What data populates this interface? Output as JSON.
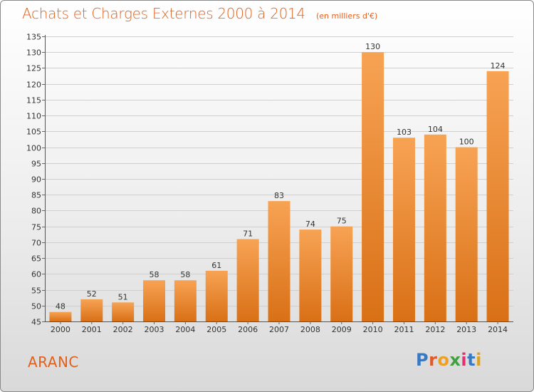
{
  "header": {
    "title": "Achats et Charges Externes 2000 à 2014",
    "subtitle": "(en milliers d'€)"
  },
  "footer": {
    "commune": "ARANC",
    "logo_text": "Proxiti",
    "logo_colors": [
      "#3a78c2",
      "#e05a28",
      "#f0a020",
      "#40a040",
      "#e03070",
      "#3a78c2",
      "#e0a020"
    ]
  },
  "colors": {
    "title": "#e0601c",
    "bar_light": "#f7a354",
    "bar_dark": "#d97016"
  },
  "chart_data": {
    "type": "bar",
    "title": "Achats et Charges Externes 2000 à 2014",
    "categories": [
      "2000",
      "2001",
      "2002",
      "2003",
      "2004",
      "2005",
      "2006",
      "2007",
      "2008",
      "2009",
      "2010",
      "2011",
      "2012",
      "2013",
      "2014"
    ],
    "values": [
      48,
      52,
      51,
      58,
      58,
      61,
      71,
      83,
      74,
      75,
      130,
      103,
      104,
      100,
      124
    ],
    "ylim": [
      45,
      135
    ],
    "yticks": [
      45,
      50,
      55,
      60,
      65,
      70,
      75,
      80,
      85,
      90,
      95,
      100,
      105,
      110,
      115,
      120,
      125,
      130,
      135
    ],
    "grid": true
  }
}
